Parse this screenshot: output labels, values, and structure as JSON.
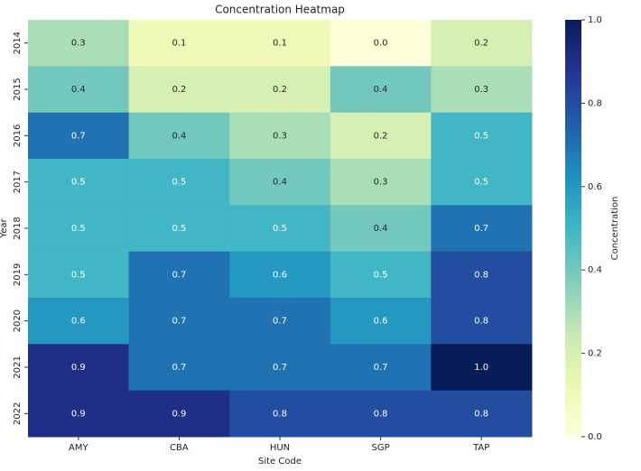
{
  "chart_data": {
    "type": "heatmap",
    "title": "Concentration Heatmap",
    "xlabel": "Site Code",
    "ylabel": "Year",
    "colorbar_label": "Concentration",
    "categories": [
      "AMY",
      "CBA",
      "HUN",
      "SGP",
      "TAP"
    ],
    "rows": [
      "2014",
      "2015",
      "2016",
      "2017",
      "2018",
      "2019",
      "2020",
      "2021",
      "2022"
    ],
    "values": [
      [
        0.3,
        0.1,
        0.1,
        0.0,
        0.2
      ],
      [
        0.4,
        0.2,
        0.2,
        0.4,
        0.3
      ],
      [
        0.7,
        0.4,
        0.3,
        0.2,
        0.5
      ],
      [
        0.5,
        0.5,
        0.4,
        0.3,
        0.5
      ],
      [
        0.5,
        0.5,
        0.5,
        0.4,
        0.7
      ],
      [
        0.5,
        0.7,
        0.6,
        0.5,
        0.8
      ],
      [
        0.6,
        0.7,
        0.7,
        0.6,
        0.8
      ],
      [
        0.9,
        0.7,
        0.7,
        0.7,
        1.0
      ],
      [
        0.9,
        0.9,
        0.8,
        0.8,
        0.8
      ]
    ],
    "value_labels": [
      [
        "0.3",
        "0.1",
        "0.1",
        "0.0",
        "0.2"
      ],
      [
        "0.4",
        "0.2",
        "0.2",
        "0.4",
        "0.3"
      ],
      [
        "0.7",
        "0.4",
        "0.3",
        "0.2",
        "0.5"
      ],
      [
        "0.5",
        "0.5",
        "0.4",
        "0.3",
        "0.5"
      ],
      [
        "0.5",
        "0.5",
        "0.5",
        "0.4",
        "0.7"
      ],
      [
        "0.5",
        "0.7",
        "0.6",
        "0.5",
        "0.8"
      ],
      [
        "0.6",
        "0.7",
        "0.7",
        "0.6",
        "0.8"
      ],
      [
        "0.9",
        "0.7",
        "0.7",
        "0.7",
        "1.0"
      ],
      [
        "0.9",
        "0.9",
        "0.8",
        "0.8",
        "0.8"
      ]
    ],
    "clim": [
      0,
      1
    ],
    "cticks": [
      {
        "value": 0,
        "label": "0.0"
      },
      0.2,
      0.4,
      0.6,
      0.8,
      {
        "value": 1,
        "label": "1.0"
      }
    ],
    "colormap": [
      "#ffffd9",
      "#edf8b1",
      "#c7e9b4",
      "#7fcdbb",
      "#41b6c4",
      "#1d91c0",
      "#225ea8",
      "#253494",
      "#081d58"
    ]
  }
}
